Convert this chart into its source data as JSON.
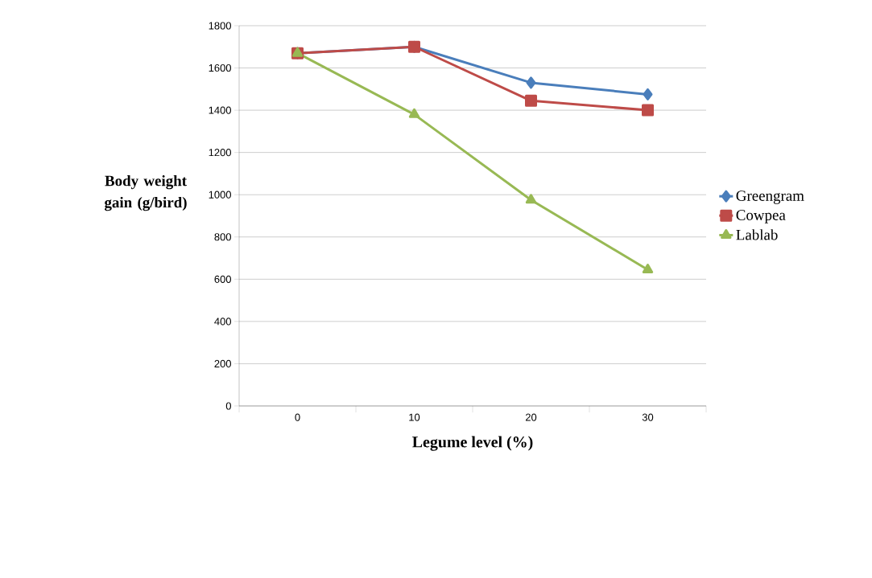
{
  "chart_data": {
    "type": "line",
    "xlabel": "Legume level (%)",
    "ylabel": "Body weight gain (g/bird)",
    "categories": [
      "0",
      "10",
      "20",
      "30"
    ],
    "series": [
      {
        "name": "Greengram",
        "color": "#4a7ebb",
        "marker": "diamond",
        "values": [
          1670,
          1700,
          1530,
          1475
        ]
      },
      {
        "name": "Cowpea",
        "color": "#be4b48",
        "marker": "square",
        "values": [
          1670,
          1700,
          1445,
          1400
        ]
      },
      {
        "name": "Lablab",
        "color": "#98b954",
        "marker": "triangle",
        "values": [
          1670,
          1380,
          975,
          645
        ]
      }
    ],
    "ylim": [
      0,
      1800
    ],
    "yticks": [
      0,
      200,
      400,
      600,
      800,
      1000,
      1200,
      1400,
      1600,
      1800
    ],
    "grid": "y",
    "legend": "right",
    "line_style": "solid"
  }
}
